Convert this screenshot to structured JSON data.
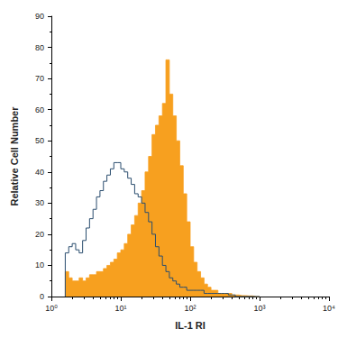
{
  "chart_data": {
    "type": "histogram",
    "x_label": "IL-1 RI",
    "y_label": "Relative Cell Number",
    "log": "x",
    "grid": false,
    "xlim": [
      1,
      10000
    ],
    "xticks": [
      {
        "value": 1,
        "label": "10⁰"
      },
      {
        "value": 10,
        "label": "10¹"
      },
      {
        "value": 100,
        "label": "10²"
      },
      {
        "value": 1000,
        "label": "10³"
      },
      {
        "value": 10000,
        "label": "10⁴"
      }
    ],
    "ylim": [
      0,
      90
    ],
    "yticks": [
      0,
      10,
      20,
      30,
      40,
      50,
      60,
      70,
      80,
      90
    ],
    "bins": [
      1.585,
      1.778,
      1.995,
      2.239,
      2.512,
      2.818,
      3.162,
      3.548,
      3.981,
      4.467,
      5.012,
      5.623,
      6.31,
      7.079,
      7.943,
      8.913,
      10,
      11.22,
      12.59,
      14.13,
      15.85,
      17.78,
      19.95,
      22.39,
      25.12,
      28.18,
      31.62,
      35.48,
      39.81,
      44.67,
      50.12,
      56.23,
      63.1,
      70.79,
      79.43,
      89.13,
      100,
      112.2,
      125.9,
      141.3,
      158.5,
      177.8,
      199.5,
      223.9,
      251.2,
      281.8,
      316.2,
      354.8,
      398.1,
      446.7,
      501.2,
      562.3,
      631,
      707.9,
      794.3,
      891.3,
      1000
    ],
    "series": [
      {
        "type": "area",
        "color": "#f7a01f",
        "values": [
          8,
          6,
          5,
          5,
          6,
          5,
          6,
          7,
          7,
          8,
          8,
          9,
          10,
          11,
          12,
          14,
          15,
          17,
          20,
          23,
          26,
          30,
          34,
          40,
          45,
          52,
          55,
          58,
          62,
          76,
          65,
          58,
          50,
          42,
          33,
          24,
          16,
          11,
          8,
          6,
          4,
          3,
          2,
          2,
          1,
          1,
          1,
          1,
          0.5,
          0.5,
          0.3,
          0.3,
          0.2,
          0.2,
          0,
          0
        ]
      },
      {
        "type": "line",
        "color": "#2a4d6e",
        "values": [
          14,
          16,
          17,
          15,
          14,
          18,
          22,
          25,
          28,
          32,
          34,
          37,
          39,
          41,
          43,
          43,
          41,
          40,
          38,
          36,
          33,
          32,
          30,
          27,
          24,
          20,
          16,
          13,
          10,
          8,
          6,
          5,
          4,
          3,
          3,
          2,
          2,
          2,
          2,
          2,
          1,
          1,
          1,
          1,
          1,
          1,
          1,
          0.5,
          0.5,
          0,
          0,
          0,
          0,
          0,
          0,
          0
        ]
      }
    ]
  }
}
